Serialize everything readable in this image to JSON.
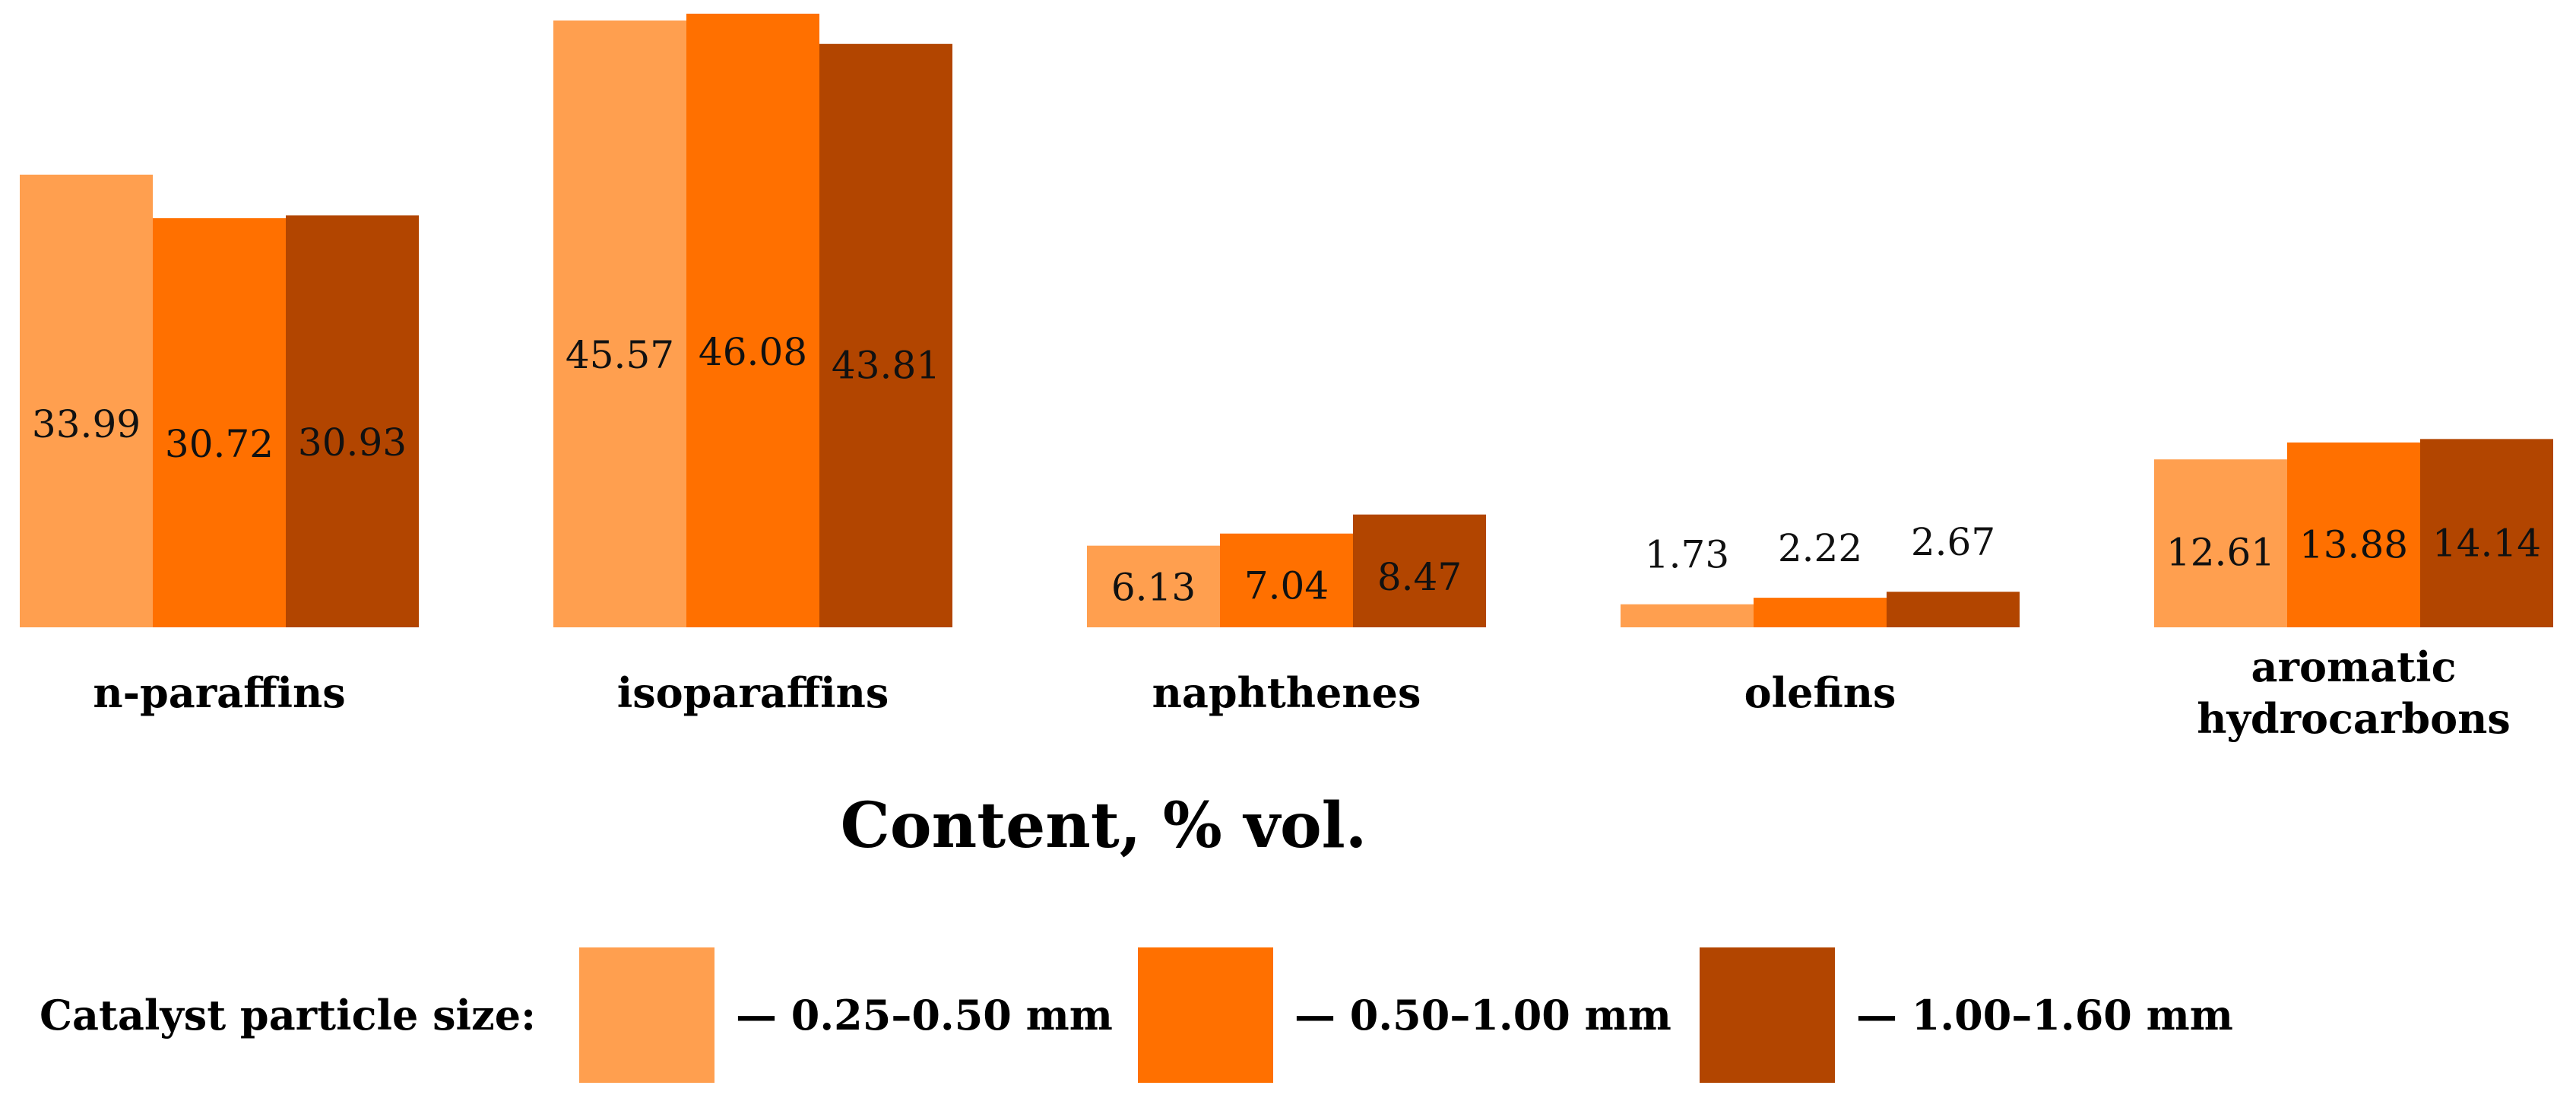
{
  "chart_data": {
    "type": "bar",
    "categories": [
      "n-paraffins",
      "isoparaffins",
      "naphthenes",
      "olefins",
      "aromatic hydrocarbons"
    ],
    "category_lines": [
      [
        "n-paraffins"
      ],
      [
        "isoparaffins"
      ],
      [
        "naphthenes"
      ],
      [
        "olefins"
      ],
      [
        "aromatic",
        "hydrocarbons"
      ]
    ],
    "series": [
      {
        "name": "— 0.25–0.50 mm",
        "color": "#FF9F4F",
        "values": [
          33.99,
          45.57,
          6.13,
          1.73,
          12.61
        ],
        "labels": [
          "33.99",
          "45.57",
          "6.13",
          "1.73",
          "12.61"
        ]
      },
      {
        "name": "— 0.50–1.00 mm",
        "color": "#FF7000",
        "values": [
          30.72,
          46.08,
          7.04,
          2.22,
          13.88
        ],
        "labels": [
          "30.72",
          "46.08",
          "7.04",
          "2.22",
          "13.88"
        ]
      },
      {
        "name": "— 1.00–1.60 mm",
        "color": "#B24500",
        "values": [
          30.93,
          43.81,
          8.47,
          2.67,
          14.14
        ],
        "labels": [
          "30.93",
          "43.81",
          "8.47",
          "2.67",
          "14.14"
        ]
      }
    ],
    "xlabel": "Content, % vol.",
    "ylabel": "",
    "ylim": [
      0,
      46.08
    ],
    "grid": false,
    "legend": {
      "title": "Catalyst particle size:",
      "placement": "bottom"
    }
  }
}
